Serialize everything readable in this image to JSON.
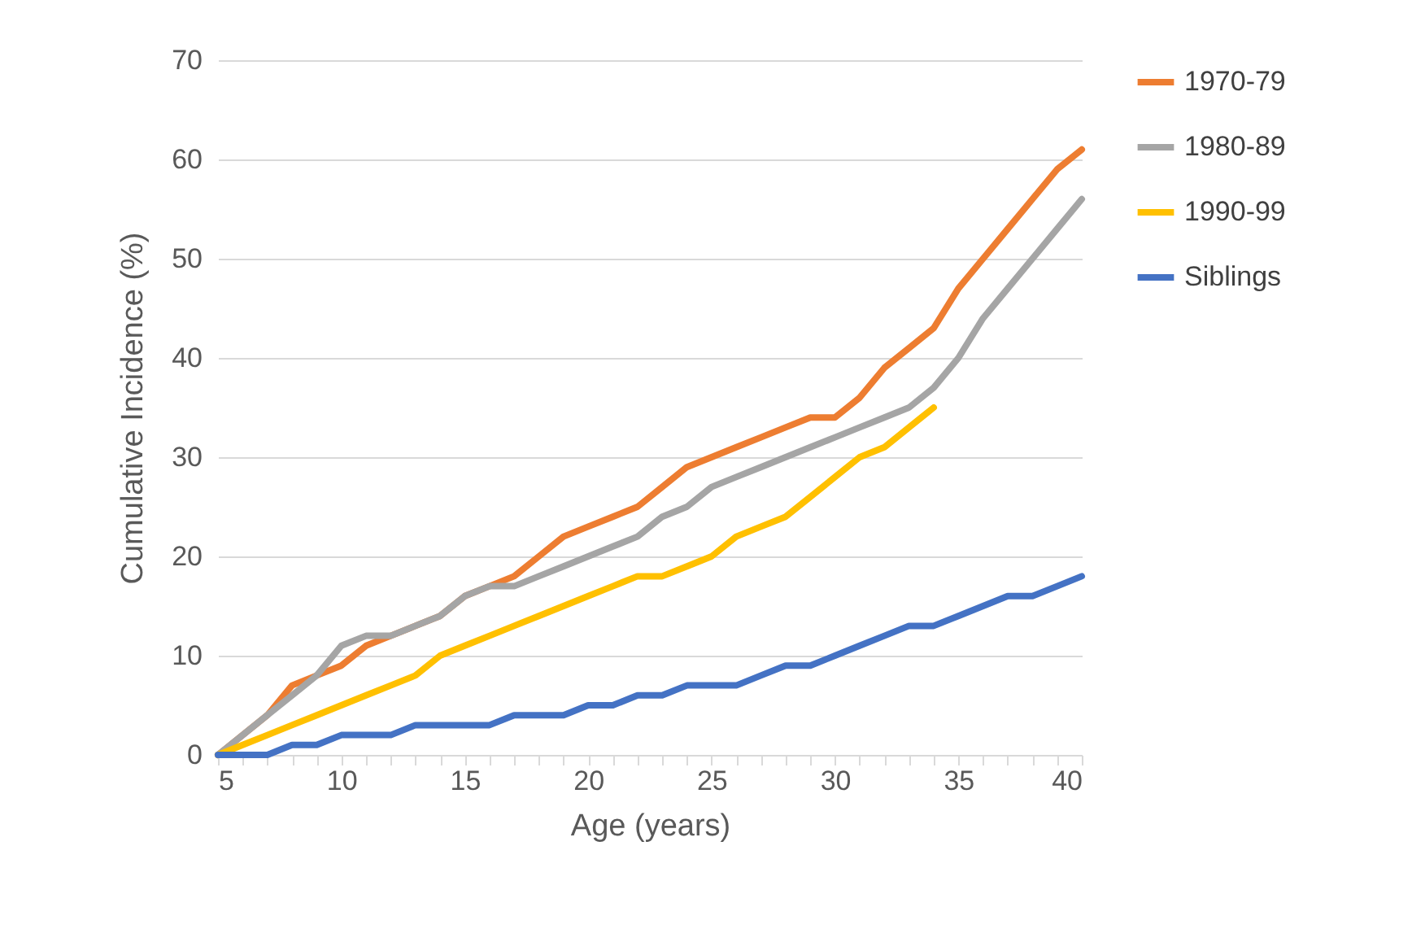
{
  "chart_data": {
    "type": "line",
    "xlabel": "Age (years)",
    "ylabel": "Cumulative Incidence (%)",
    "x": [
      5,
      6,
      7,
      8,
      9,
      10,
      11,
      12,
      13,
      14,
      15,
      16,
      17,
      18,
      19,
      20,
      21,
      22,
      23,
      24,
      25,
      26,
      27,
      28,
      29,
      30,
      31,
      32,
      33,
      34,
      35,
      36,
      37,
      38,
      39,
      40
    ],
    "series": [
      {
        "name": "1970-79",
        "color": "#ed7d31",
        "values": [
          0,
          2,
          4,
          7,
          8,
          9,
          11,
          12,
          13,
          14,
          16,
          17,
          18,
          20,
          22,
          23,
          24,
          25,
          27,
          29,
          30,
          31,
          32,
          33,
          34,
          34,
          36,
          39,
          41,
          43,
          47,
          50,
          53,
          56,
          59,
          61
        ]
      },
      {
        "name": "1980-89",
        "color": "#a5a5a5",
        "values": [
          0,
          2,
          4,
          6,
          8,
          11,
          12,
          12,
          13,
          14,
          16,
          17,
          17,
          18,
          19,
          20,
          21,
          22,
          24,
          25,
          27,
          28,
          29,
          30,
          31,
          32,
          33,
          34,
          35,
          37,
          40,
          44,
          47,
          50,
          53,
          56
        ]
      },
      {
        "name": "1990-99",
        "color": "#ffc000",
        "values": [
          0,
          1,
          2,
          3,
          4,
          5,
          6,
          7,
          8,
          10,
          11,
          12,
          13,
          14,
          15,
          16,
          17,
          18,
          18,
          19,
          20,
          22,
          23,
          24,
          26,
          28,
          30,
          31,
          33,
          35,
          null,
          null,
          null,
          null,
          null,
          null
        ]
      },
      {
        "name": "Siblings",
        "color": "#4472c4",
        "values": [
          0,
          0,
          0,
          1,
          1,
          2,
          2,
          2,
          3,
          3,
          3,
          3,
          4,
          4,
          4,
          5,
          5,
          6,
          6,
          7,
          7,
          7,
          8,
          9,
          9,
          10,
          11,
          12,
          13,
          13,
          14,
          15,
          16,
          16,
          17,
          18
        ]
      }
    ],
    "xlim": [
      5,
      40
    ],
    "xticks": [
      5,
      {
        "value": 6,
        "label": null
      },
      {
        "value": 7,
        "label": null
      },
      {
        "value": 8,
        "label": null
      },
      {
        "value": 9,
        "label": null
      },
      10,
      {
        "value": 11,
        "label": null
      },
      {
        "value": 12,
        "label": null
      },
      {
        "value": 13,
        "label": null
      },
      {
        "value": 14,
        "label": null
      },
      15,
      {
        "value": 16,
        "label": null
      },
      {
        "value": 17,
        "label": null
      },
      {
        "value": 18,
        "label": null
      },
      {
        "value": 19,
        "label": null
      },
      20,
      {
        "value": 21,
        "label": null
      },
      {
        "value": 22,
        "label": null
      },
      {
        "value": 23,
        "label": null
      },
      {
        "value": 24,
        "label": null
      },
      25,
      {
        "value": 26,
        "label": null
      },
      {
        "value": 27,
        "label": null
      },
      {
        "value": 28,
        "label": null
      },
      {
        "value": 29,
        "label": null
      },
      30,
      {
        "value": 31,
        "label": null
      },
      {
        "value": 32,
        "label": null
      },
      {
        "value": 33,
        "label": null
      },
      {
        "value": 34,
        "label": null
      },
      35,
      {
        "value": 36,
        "label": null
      },
      {
        "value": 37,
        "label": null
      },
      {
        "value": 38,
        "label": null
      },
      {
        "value": 39,
        "label": null
      },
      40
    ],
    "ylim": [
      0,
      70
    ],
    "yticks": [
      0,
      10,
      20,
      30,
      40,
      50,
      60,
      70
    ],
    "grid": "y",
    "legend": "right",
    "marker": "none",
    "line_style": "solid"
  }
}
